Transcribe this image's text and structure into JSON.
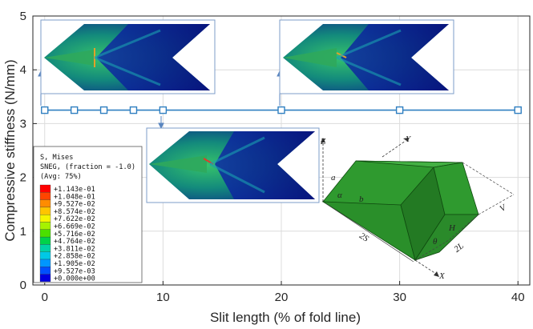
{
  "chart_data": {
    "type": "line",
    "title": "",
    "xlabel": "Slit length (% of fold line)",
    "ylabel": "Compressive stiffness (N/mm)",
    "xlim": [
      -1,
      41
    ],
    "ylim": [
      0,
      5
    ],
    "xticks": [
      0,
      10,
      20,
      30,
      40
    ],
    "yticks": [
      0,
      1,
      2,
      3,
      4,
      5
    ],
    "grid": true,
    "series": [
      {
        "name": "",
        "color": "#2f7fc1",
        "marker": "square-open",
        "x": [
          0,
          2.5,
          5,
          7.5,
          10,
          20,
          30,
          40
        ],
        "y": [
          3.25,
          3.25,
          3.25,
          3.25,
          3.25,
          3.25,
          3.25,
          3.25
        ]
      }
    ]
  },
  "legend": {
    "header": [
      "S, Mises",
      "SNEG, (fraction = -1.0)",
      "(Avg: 75%)"
    ],
    "entries": [
      {
        "label": "+1.143e-01",
        "color": "#ff0000"
      },
      {
        "label": "+1.048e-01",
        "color": "#ff4500"
      },
      {
        "label": "+9.527e-02",
        "color": "#ff8c00"
      },
      {
        "label": "+8.574e-02",
        "color": "#ffc400"
      },
      {
        "label": "+7.622e-02",
        "color": "#f5f500"
      },
      {
        "label": "+6.669e-02",
        "color": "#a6f200"
      },
      {
        "label": "+5.716e-02",
        "color": "#4be000"
      },
      {
        "label": "+4.764e-02",
        "color": "#00d24a"
      },
      {
        "label": "+3.811e-02",
        "color": "#00d2a6"
      },
      {
        "label": "+2.858e-02",
        "color": "#00c8e6"
      },
      {
        "label": "+1.905e-02",
        "color": "#0096ff"
      },
      {
        "label": "+9.527e-03",
        "color": "#0050ff"
      },
      {
        "label": "+0.000e+00",
        "color": "#0000e0"
      }
    ]
  },
  "geometry_labels": {
    "z": "Z",
    "y": "Y",
    "x": "X",
    "a": "a",
    "alpha": "α",
    "b": "b",
    "two_s": "2S",
    "theta": "θ",
    "h": "H",
    "two_l": "2L",
    "v": "V"
  },
  "colors": {
    "axis": "#262626",
    "grid": "#dcdcdc",
    "fem_dark": "#0a1d8c",
    "fem_green": "#1f9c50",
    "model_face": "#2f9a2f",
    "model_side": "#237a23",
    "model_top": "#43b043"
  }
}
